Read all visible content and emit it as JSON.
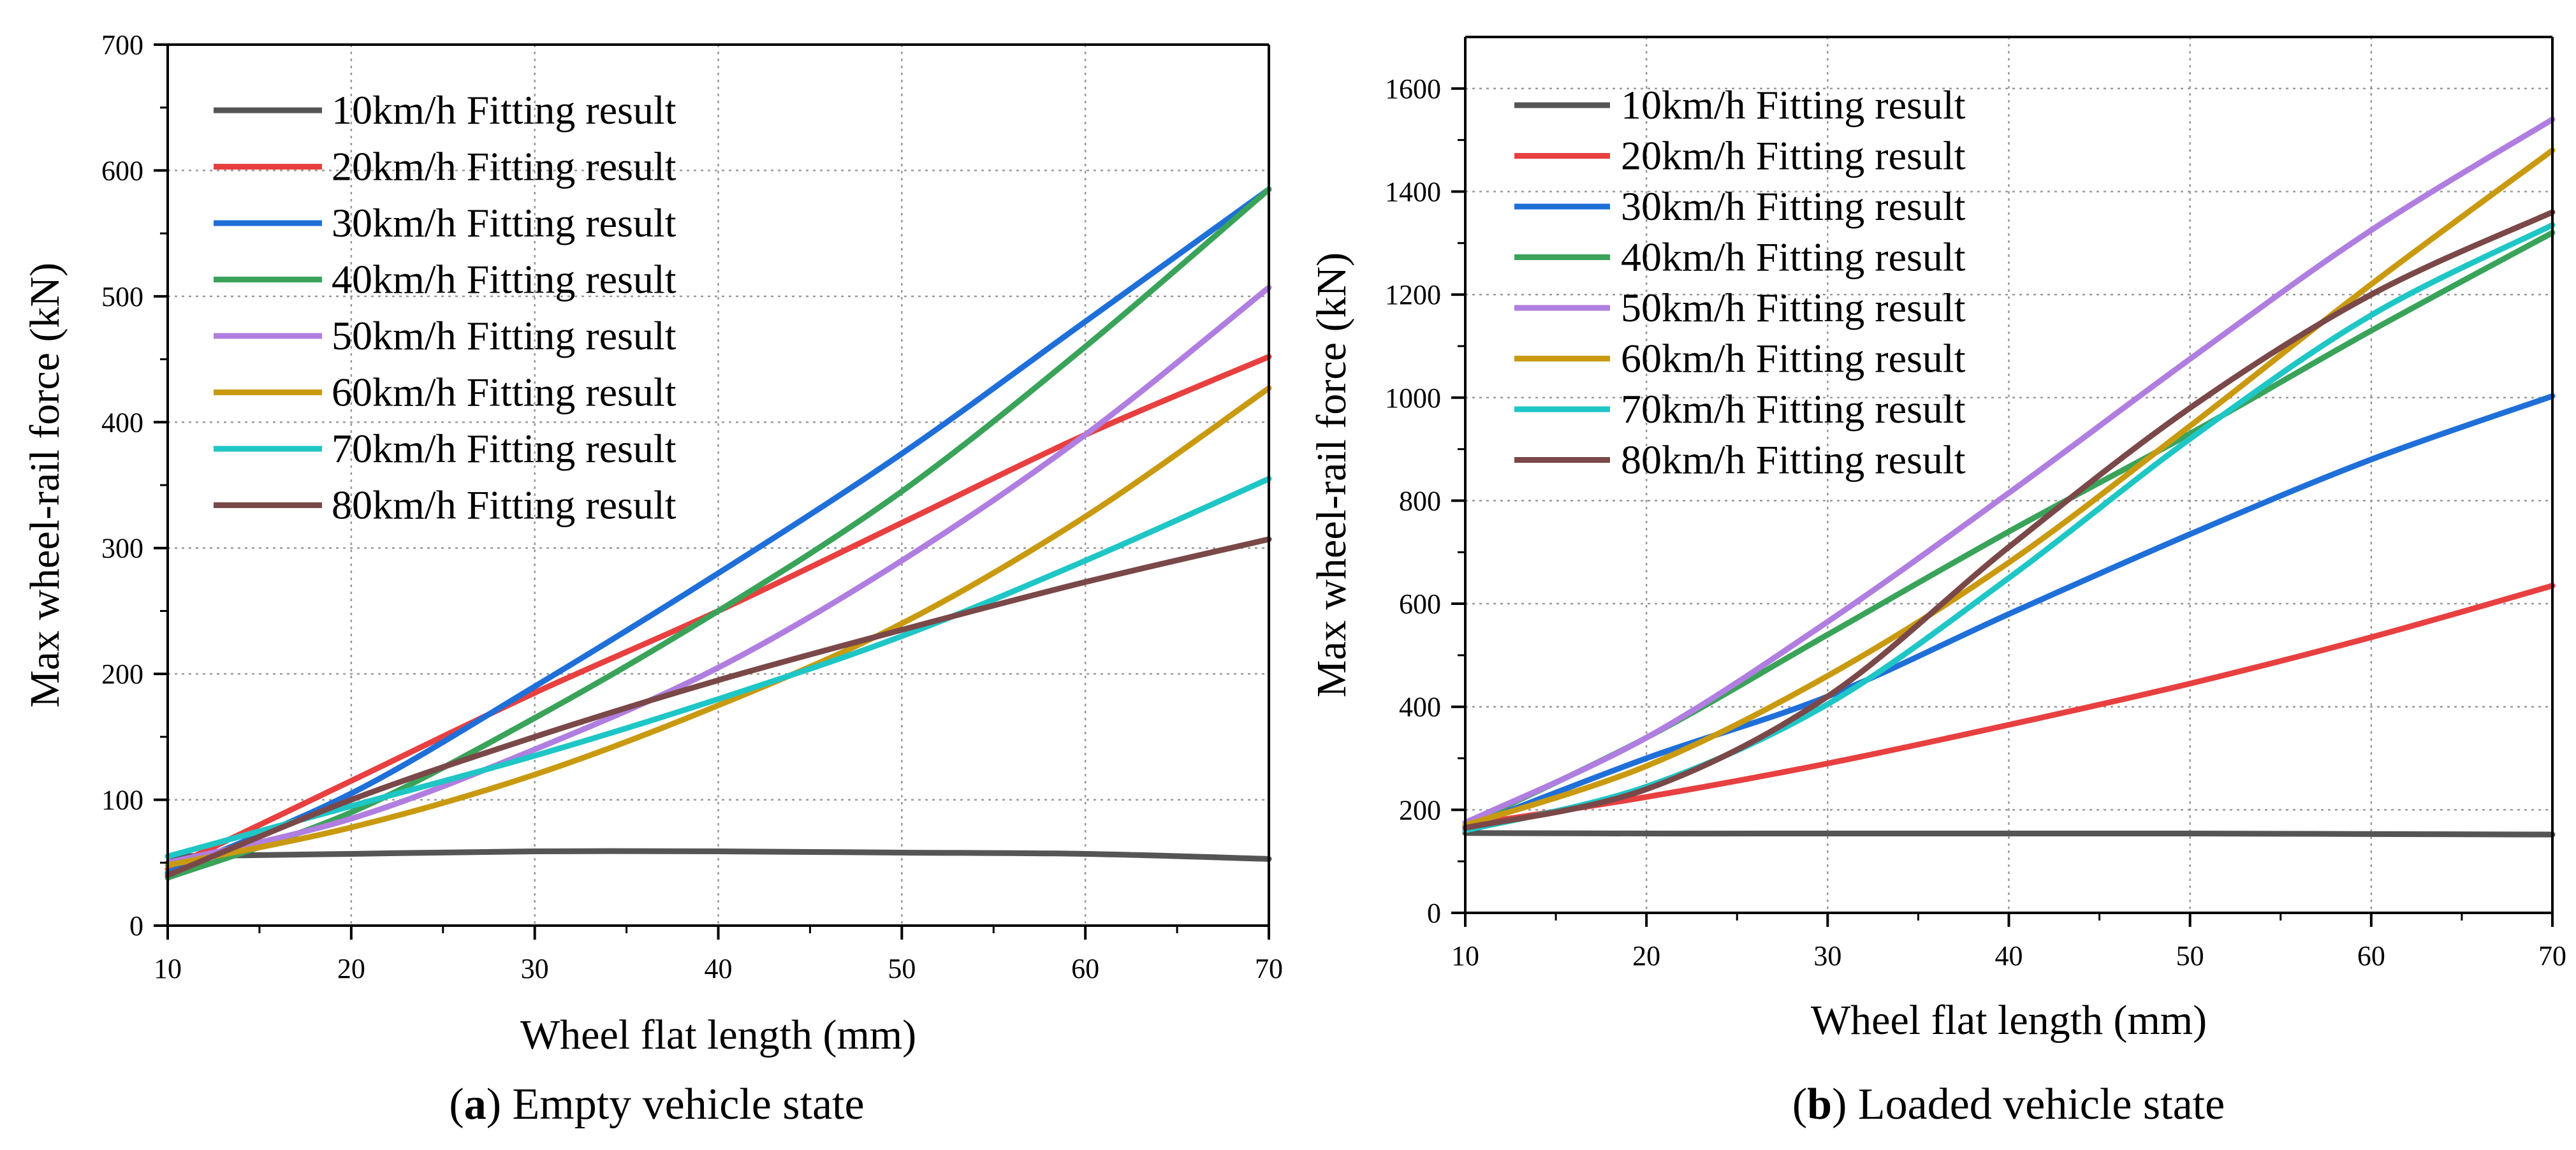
{
  "chart_data": [
    {
      "type": "line",
      "title": "",
      "caption_letter": "a",
      "caption_text": " Empty vehicle state",
      "xlabel": "Wheel flat length (mm)",
      "ylabel": "Max wheel-rail force (kN)",
      "xlim": [
        10,
        70
      ],
      "ylim": [
        0,
        700
      ],
      "xticks": [
        10,
        20,
        30,
        40,
        50,
        60,
        70
      ],
      "yticks": [
        0,
        100,
        200,
        300,
        400,
        500,
        600,
        700
      ],
      "grid": true,
      "legend_position": "top-left",
      "x": [
        10,
        20,
        30,
        40,
        50,
        60,
        70
      ],
      "series": [
        {
          "name": "10km/h Fitting result",
          "color": "#555555",
          "values": [
            55,
            57,
            59,
            59,
            58,
            57,
            53
          ]
        },
        {
          "name": "20km/h Fitting result",
          "color": "#e84040",
          "values": [
            45,
            115,
            185,
            250,
            320,
            390,
            452
          ]
        },
        {
          "name": "30km/h Fitting result",
          "color": "#1f6fd9",
          "values": [
            42,
            105,
            190,
            280,
            375,
            480,
            585
          ]
        },
        {
          "name": "40km/h Fitting result",
          "color": "#3aa35a",
          "values": [
            38,
            90,
            165,
            250,
            345,
            460,
            585
          ]
        },
        {
          "name": "50km/h Fitting result",
          "color": "#b07ee0",
          "values": [
            50,
            85,
            140,
            205,
            290,
            390,
            507
          ]
        },
        {
          "name": "60km/h Fitting result",
          "color": "#c99a10",
          "values": [
            48,
            78,
            120,
            175,
            240,
            325,
            427
          ]
        },
        {
          "name": "70km/h Fitting result",
          "color": "#1fc6c6",
          "values": [
            55,
            95,
            135,
            180,
            230,
            290,
            355
          ]
        },
        {
          "name": "80km/h Fitting result",
          "color": "#7a4848",
          "values": [
            40,
            100,
            150,
            195,
            235,
            273,
            307
          ]
        }
      ]
    },
    {
      "type": "line",
      "title": "",
      "caption_letter": "b",
      "caption_text": " Loaded vehicle state",
      "xlabel": "Wheel flat length (mm)",
      "ylabel": "Max wheel-rail force (kN)",
      "xlim": [
        10,
        70
      ],
      "ylim": [
        0,
        1700
      ],
      "xticks": [
        10,
        20,
        30,
        40,
        50,
        60,
        70
      ],
      "yticks": [
        0,
        200,
        400,
        600,
        800,
        1000,
        1200,
        1400,
        1600
      ],
      "grid": true,
      "legend_position": "top-left",
      "x": [
        10,
        20,
        30,
        40,
        50,
        60,
        70
      ],
      "series": [
        {
          "name": "10km/h Fitting result",
          "color": "#555555",
          "values": [
            155,
            154,
            154,
            154,
            154,
            153,
            152
          ]
        },
        {
          "name": "20km/h Fitting result",
          "color": "#e84040",
          "values": [
            170,
            225,
            290,
            365,
            445,
            535,
            635
          ]
        },
        {
          "name": "30km/h Fitting result",
          "color": "#1f6fd9",
          "values": [
            165,
            300,
            420,
            580,
            735,
            880,
            1003
          ]
        },
        {
          "name": "40km/h Fitting result",
          "color": "#3aa35a",
          "values": [
            170,
            340,
            540,
            740,
            930,
            1130,
            1320
          ]
        },
        {
          "name": "50km/h Fitting result",
          "color": "#b07ee0",
          "values": [
            175,
            340,
            565,
            815,
            1075,
            1325,
            1540
          ]
        },
        {
          "name": "60km/h Fitting result",
          "color": "#c99a10",
          "values": [
            170,
            285,
            460,
            680,
            945,
            1220,
            1480
          ]
        },
        {
          "name": "70km/h Fitting result",
          "color": "#1fc6c6",
          "values": [
            160,
            245,
            405,
            650,
            920,
            1160,
            1335
          ]
        },
        {
          "name": "80km/h Fitting result",
          "color": "#7a4848",
          "values": [
            165,
            240,
            420,
            710,
            980,
            1200,
            1360
          ]
        }
      ]
    }
  ]
}
